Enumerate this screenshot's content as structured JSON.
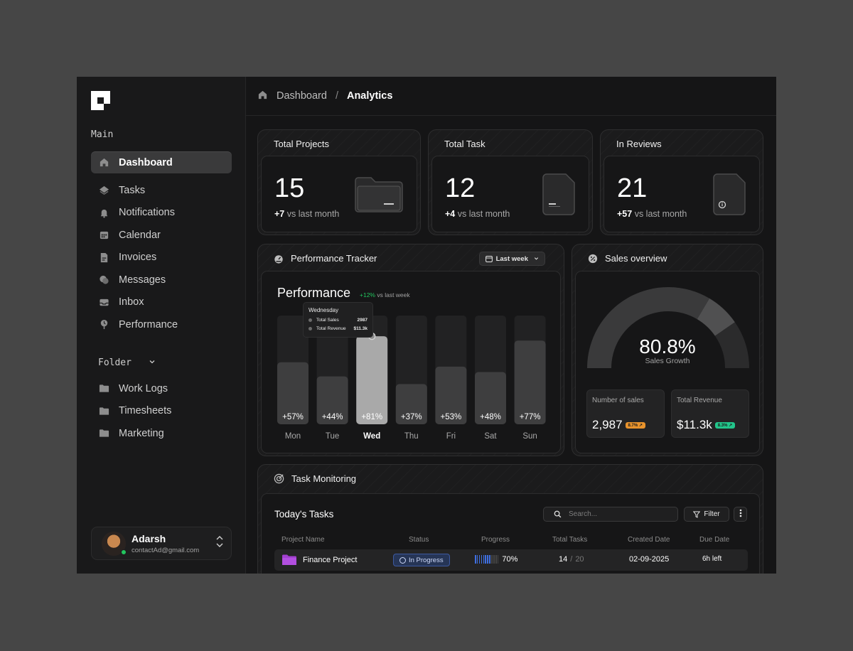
{
  "sidebar": {
    "section_main": "Main",
    "nav": [
      {
        "label": "Dashboard",
        "icon": "home-icon",
        "active": true
      },
      {
        "label": "Tasks",
        "icon": "layers-icon"
      },
      {
        "label": "Notifications",
        "icon": "bell-icon"
      },
      {
        "label": "Calendar",
        "icon": "calendar-icon"
      },
      {
        "label": "Invoices",
        "icon": "invoice-icon"
      },
      {
        "label": "Messages",
        "icon": "chat-icon"
      },
      {
        "label": "Inbox",
        "icon": "inbox-icon"
      },
      {
        "label": "Performance",
        "icon": "performance-icon"
      }
    ],
    "folder_label": "Folder",
    "folders": [
      {
        "label": "Work Logs",
        "icon": "folder-icon"
      },
      {
        "label": "Timesheets",
        "icon": "folder-icon"
      },
      {
        "label": "Marketing",
        "icon": "folder-icon"
      }
    ],
    "user": {
      "name": "Adarsh",
      "email": "contactAd@gmail.com"
    }
  },
  "breadcrumb": {
    "parent": "Dashboard",
    "separator": "/",
    "current": "Analytics"
  },
  "stats": [
    {
      "title": "Total Projects",
      "value": "15",
      "delta": "+7",
      "suffix": " vs last month"
    },
    {
      "title": "Total Task",
      "value": "12",
      "delta": "+4",
      "suffix": " vs last month"
    },
    {
      "title": "In Reviews",
      "value": "21",
      "delta": "+57",
      "suffix": " vs last month"
    }
  ],
  "performance": {
    "panel_title": "Performance Tracker",
    "range": "Last week",
    "title": "Performance",
    "delta": "+12%",
    "delta_suffix": " vs last week",
    "tooltip": {
      "title": "Wednesday",
      "rows": [
        {
          "label": "Total Sales",
          "value": "2987"
        },
        {
          "label": "Total Revenue",
          "value": "$11.3k"
        }
      ]
    }
  },
  "chart_data": {
    "type": "bar",
    "categories": [
      "Mon",
      "Tue",
      "Wed",
      "Thu",
      "Fri",
      "Sat",
      "Sun"
    ],
    "values": [
      57,
      44,
      81,
      37,
      53,
      48,
      77
    ],
    "labels": [
      "+57%",
      "+44%",
      "+81%",
      "+37%",
      "+53%",
      "+48%",
      "+77%"
    ],
    "highlight": "Wed",
    "ylim": [
      0,
      100
    ]
  },
  "sales": {
    "panel_title": "Sales overview",
    "growth": "80.8%",
    "growth_value": 80.8,
    "growth_label": "Sales Growth",
    "cards": [
      {
        "label": "Number of sales",
        "value": "2,987",
        "badge": "8.7% ↗",
        "badge_color": "#e8932c"
      },
      {
        "label": "Total Revenue",
        "value": "$11.3k",
        "badge": "8.3% ↗",
        "badge_color": "#22c58b"
      }
    ]
  },
  "tasks": {
    "panel_title": "Task Monitoring",
    "heading": "Today's Tasks",
    "search_placeholder": "Search...",
    "filter_label": "Filter",
    "columns": [
      "Project Name",
      "Status",
      "Progress",
      "Total Tasks",
      "Created Date",
      "Due Date"
    ],
    "rows": [
      {
        "project": "Finance Project",
        "status": "In Progress",
        "progress": "70%",
        "progress_value": 70,
        "done": "14",
        "total": "20",
        "created": "02-09-2025",
        "due": "6h left"
      }
    ]
  },
  "colors": {
    "accent_green": "#22c55e",
    "status_blue": "#3d5aa0",
    "folder_purple": "#a23fd0"
  }
}
